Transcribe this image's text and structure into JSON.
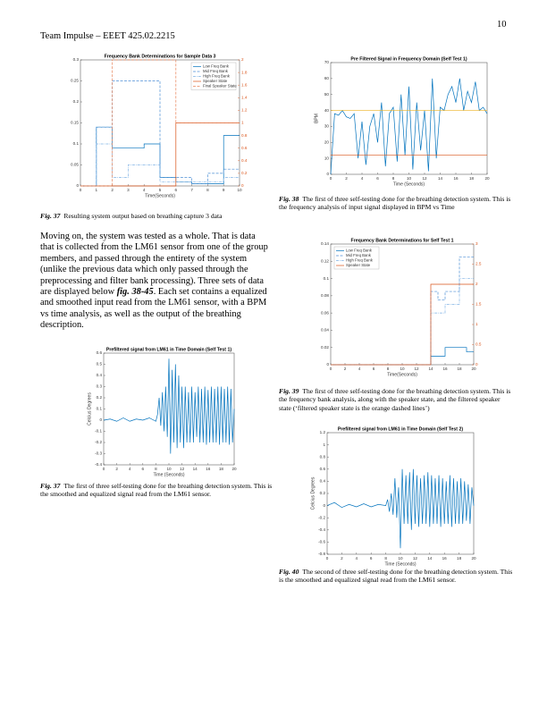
{
  "header": {
    "running_title": "Team Impulse – EEET 425.02.2215",
    "page_number": "10"
  },
  "paragraph": [
    "Moving on, the system was tested as a whole. That is data that is collected from the LM61 sensor from one of the group members, and passed through the entirety of the system (unlike the previous data which only passed through the preprocessing and filter bank processing). Three sets of data are displayed below ",
    "fig. 38-45",
    ". Each set contains a equalized and smoothed input read from the LM61 sensor, with a BPM vs time analysis, as well as the output of the breathing description."
  ],
  "captions": [
    {
      "label": "Fig. 37",
      "text": "Resulting system output based on breathing capture 3 data"
    },
    {
      "label": "Fig. 38",
      "text": "The first of three self-testing done for the breathing detection system. This is the frequency analysis of input signal displayed in BPM vs Time"
    },
    {
      "label": "Fig. 39",
      "text": "The first of three self-testing done for the breathing detection system. This is the frequency bank analysis, along with the speaker state, and the filtered speaker state (‘filtered speaker state is the orange dashed lines’)"
    },
    {
      "label": "Fig. 37",
      "text": "The first of three self-testing done for the breathing detection system. This is the smoothed and equalized signal read from the LM61 sensor."
    },
    {
      "label": "Fig. 40",
      "text": "The second of three self-testing done for the breathing detection system. This is the smoothed and equalized signal read from the LM61 sensor."
    }
  ],
  "chart_data": [
    {
      "type": "step",
      "title": "Frequency Bank Determinations for Sample Data 3",
      "xlabel": "Time(Seconds)",
      "xlim": [
        0,
        10
      ],
      "xticks": [
        0,
        1,
        2,
        3,
        4,
        5,
        6,
        7,
        8,
        9,
        10
      ],
      "ylim": [
        0,
        0.3
      ],
      "yticks": [
        0,
        0.05,
        0.1,
        0.15,
        0.2,
        0.25,
        0.3
      ],
      "y2lim": [
        0,
        2
      ],
      "y2ticks": [
        0,
        0.2,
        0.4,
        0.6,
        0.8,
        1,
        1.2,
        1.4,
        1.6,
        1.8,
        2
      ],
      "y2color": "#d95319",
      "legend": "upper right",
      "x": [
        0,
        1,
        2,
        3,
        4,
        5,
        6,
        7,
        8,
        9,
        10
      ],
      "series": [
        {
          "name": "Low Freq Bank",
          "color": "#0072bd",
          "linestyle": "solid",
          "values": [
            0,
            0.14,
            0.09,
            0.09,
            0.1,
            0.02,
            0.01,
            0.005,
            0.005,
            0.12,
            0.12
          ]
        },
        {
          "name": "Mid Freq Bank",
          "color": "#4d8fd6",
          "linestyle": "dashed",
          "values": [
            0,
            0.14,
            0.25,
            0.25,
            0.25,
            0.02,
            0.02,
            0.005,
            0.03,
            0.04,
            0.04
          ]
        },
        {
          "name": "High Freq Bank",
          "color": "#7fb2e5",
          "linestyle": "dashdot",
          "values": [
            0,
            0.1,
            0.02,
            0.05,
            0.05,
            0.01,
            0.01,
            0.01,
            0.01,
            0.02,
            0.02
          ]
        },
        {
          "name": "Speaker State",
          "color": "#d95319",
          "linestyle": "solid",
          "axis": "y2",
          "values": [
            0,
            0,
            0,
            0,
            0,
            0,
            1,
            1,
            1,
            1,
            1
          ]
        },
        {
          "name": "Final Speaker State",
          "color": "#e8845a",
          "linestyle": "dashed",
          "axis": "y2",
          "values": [
            0,
            0,
            2,
            2,
            2,
            2,
            1,
            1,
            1,
            1,
            1
          ]
        }
      ]
    },
    {
      "type": "line",
      "title": "Pre Filtered Signal in Frequency Domain (Self Test 1)",
      "xlabel": "Time (Seconds)",
      "ylabel": "BPM",
      "xlim": [
        0,
        20
      ],
      "xticks": [
        0,
        2,
        4,
        6,
        8,
        10,
        12,
        14,
        16,
        18,
        20
      ],
      "ylim": [
        0,
        70
      ],
      "yticks": [
        0,
        10,
        20,
        30,
        40,
        50,
        60,
        70
      ],
      "x": [
        0,
        0.5,
        1,
        1.5,
        2,
        2.5,
        3,
        3.5,
        4,
        4.5,
        5,
        5.5,
        6,
        6.5,
        7,
        7.5,
        8,
        8.5,
        9,
        9.5,
        10,
        10.5,
        11,
        11.5,
        12,
        12.5,
        13,
        13.5,
        14,
        14.5,
        15,
        15.5,
        16,
        16.5,
        17,
        17.5,
        18,
        18.5,
        19,
        19.5,
        20
      ],
      "series": [
        {
          "color": "#0072bd",
          "values": [
            0,
            38,
            37,
            40,
            36,
            35,
            38,
            10,
            33,
            6,
            30,
            38,
            20,
            45,
            5,
            38,
            42,
            8,
            50,
            12,
            55,
            3,
            45,
            15,
            40,
            2,
            60,
            10,
            42,
            40,
            50,
            55,
            45,
            60,
            40,
            52,
            45,
            58,
            40,
            42,
            38
          ]
        },
        {
          "color": "#edb120",
          "x": [
            0,
            20
          ],
          "values": [
            40,
            40
          ]
        },
        {
          "color": "#d95319",
          "x": [
            0,
            20
          ],
          "values": [
            12,
            12
          ]
        }
      ]
    },
    {
      "type": "step",
      "title": "Frequency Bank Determinations for Self Test 1",
      "xlabel": "Time(Seconds)",
      "xlim": [
        0,
        20
      ],
      "xticks": [
        0,
        2,
        4,
        6,
        8,
        10,
        12,
        14,
        16,
        18,
        20
      ],
      "ylim": [
        0,
        0.14
      ],
      "yticks": [
        0,
        0.02,
        0.04,
        0.06,
        0.08,
        0.1,
        0.12,
        0.14
      ],
      "y2lim": [
        0,
        3
      ],
      "y2ticks": [
        0,
        0.5,
        1,
        1.5,
        2,
        2.5,
        3
      ],
      "y2color": "#d95319",
      "legend": "upper left",
      "x": [
        0,
        1,
        2,
        3,
        4,
        5,
        6,
        7,
        8,
        9,
        10,
        11,
        12,
        13,
        14,
        15,
        16,
        17,
        18,
        19,
        20
      ],
      "series": [
        {
          "name": "Low Freq Bank",
          "color": "#0072bd",
          "linestyle": "solid",
          "values": [
            0,
            0,
            0,
            0,
            0,
            0,
            0,
            0,
            0,
            0,
            0,
            0,
            0,
            0,
            0.01,
            0.01,
            0.02,
            0.02,
            0.02,
            0.015,
            0.015
          ]
        },
        {
          "name": "Mid Freq Bank",
          "color": "#4d8fd6",
          "linestyle": "dashed",
          "values": [
            0,
            0,
            0,
            0,
            0,
            0,
            0,
            0,
            0,
            0,
            0,
            0,
            0,
            0,
            0.085,
            0.075,
            0.085,
            0.085,
            0.125,
            0.125,
            0.125
          ]
        },
        {
          "name": "High Freq Bank",
          "color": "#7fb2e5",
          "linestyle": "dashdot",
          "values": [
            0,
            0,
            0,
            0,
            0,
            0,
            0,
            0,
            0,
            0,
            0,
            0,
            0,
            0,
            0.06,
            0.06,
            0.07,
            0.07,
            0.1,
            0.1,
            0.1
          ]
        },
        {
          "name": "Speaker State",
          "color": "#d95319",
          "linestyle": "solid",
          "axis": "y2",
          "values": [
            0,
            0,
            0,
            0,
            0,
            0,
            0,
            0,
            0,
            0,
            0,
            0,
            0,
            0,
            2,
            2,
            2,
            2,
            2,
            2,
            2
          ]
        }
      ]
    },
    {
      "type": "line",
      "title": "Prefiltered signal from LM61 in Time Domain (Self Test 1)",
      "xlabel": "Time (Seconds)",
      "ylabel": "Celcius Degrees",
      "xlim": [
        0,
        20
      ],
      "xticks": [
        0,
        2,
        4,
        6,
        8,
        10,
        12,
        14,
        16,
        18,
        20
      ],
      "ylim": [
        -0.4,
        0.6
      ],
      "yticks": [
        -0.4,
        -0.3,
        -0.2,
        -0.1,
        0,
        0.1,
        0.2,
        0.3,
        0.4,
        0.5,
        0.6
      ],
      "x": [
        0,
        1,
        2,
        3,
        4,
        5,
        6,
        7,
        8,
        8.25,
        8.5,
        8.75,
        9,
        9.25,
        9.5,
        9.75,
        10,
        10.25,
        10.5,
        10.75,
        11,
        11.25,
        11.5,
        11.75,
        12,
        12.25,
        12.5,
        12.75,
        13,
        13.25,
        13.5,
        13.75,
        14,
        14.25,
        14.5,
        14.75,
        15,
        15.25,
        15.5,
        15.75,
        16,
        16.25,
        16.5,
        16.75,
        17,
        17.25,
        17.5,
        17.75,
        18,
        18.25,
        18.5,
        18.75,
        19,
        19.25,
        19.5,
        19.75,
        20
      ],
      "series": [
        {
          "color": "#0072bd",
          "values": [
            0,
            0.01,
            -0.01,
            0.02,
            -0.01,
            0.01,
            0,
            0.02,
            -0.01,
            0.05,
            0.2,
            -0.05,
            0.25,
            -0.1,
            0.3,
            -0.15,
            0.55,
            -0.3,
            0.45,
            -0.2,
            0.5,
            -0.25,
            0.4,
            -0.2,
            0.3,
            -0.25,
            0.3,
            -0.2,
            0.25,
            -0.2,
            0.3,
            -0.2,
            0.25,
            -0.15,
            0.3,
            -0.2,
            0.28,
            -0.2,
            0.3,
            -0.22,
            0.27,
            -0.2,
            0.3,
            -0.2,
            0.28,
            -0.2,
            0.3,
            -0.22,
            0.3,
            -0.2,
            0.28,
            -0.2,
            0.3,
            -0.22,
            0.28,
            -0.2,
            0.1
          ]
        }
      ]
    },
    {
      "type": "line",
      "title": "Prefiltered signal from LM61 in Time Domain (Self Test 2)",
      "xlabel": "Time (Seconds)",
      "ylabel": "Celcius Degrees",
      "xlim": [
        0,
        20
      ],
      "xticks": [
        0,
        2,
        4,
        6,
        8,
        10,
        12,
        14,
        16,
        18,
        20
      ],
      "ylim": [
        -0.8,
        1.2
      ],
      "yticks": [
        -0.8,
        -0.6,
        -0.4,
        -0.2,
        0,
        0.2,
        0.4,
        0.6,
        0.8,
        1,
        1.2
      ],
      "x": [
        0,
        1,
        2,
        3,
        4,
        5,
        6,
        7,
        8,
        8.25,
        8.5,
        8.75,
        9,
        9.25,
        9.5,
        9.75,
        10,
        10.25,
        10.5,
        10.75,
        11,
        11.25,
        11.5,
        11.75,
        12,
        12.25,
        12.5,
        12.75,
        13,
        13.25,
        13.5,
        13.75,
        14,
        14.25,
        14.5,
        14.75,
        15,
        15.25,
        15.5,
        15.75,
        16,
        16.25,
        16.5,
        16.75,
        17,
        17.25,
        17.5,
        17.75,
        18,
        18.25,
        18.5,
        18.75,
        19,
        19.25,
        19.5,
        19.75,
        20
      ],
      "series": [
        {
          "color": "#0072bd",
          "values": [
            0,
            0.05,
            -0.03,
            0.02,
            -0.02,
            0.03,
            -0.02,
            0.02,
            0,
            0.1,
            -0.1,
            0.2,
            -0.15,
            0.45,
            -0.2,
            0.3,
            -0.7,
            0.6,
            -0.3,
            0.5,
            -0.3,
            0.55,
            -0.4,
            0.6,
            -0.3,
            0.5,
            -0.35,
            0.45,
            -0.3,
            0.5,
            -0.3,
            0.55,
            -0.35,
            0.5,
            -0.3,
            0.45,
            -0.3,
            0.5,
            -0.35,
            0.45,
            -0.3,
            0.4,
            -0.3,
            0.5,
            -0.35,
            0.45,
            -0.3,
            0.4,
            -0.3,
            0.45,
            -0.3,
            0.4,
            -0.25,
            0.35,
            -0.3,
            0.3,
            0
          ]
        }
      ]
    }
  ]
}
